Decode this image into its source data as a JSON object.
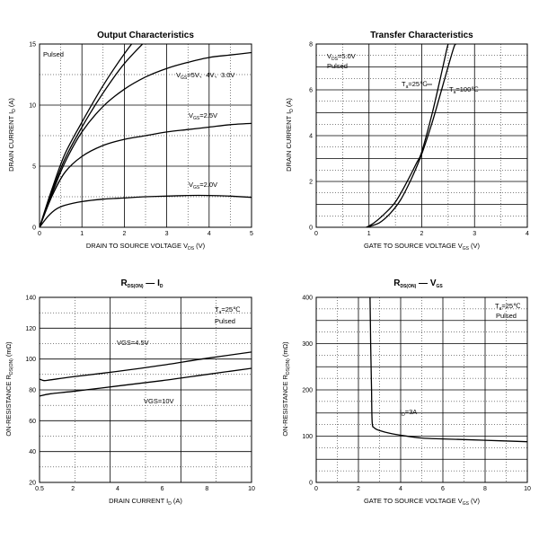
{
  "chart_data": [
    {
      "type": "line",
      "title": "Output Characteristics",
      "xlabel": "DRAIN TO SOURCE VOLTAGE",
      "xlabel_sym": "V",
      "xlabel_sub": "DS",
      "xlabel_unit": "(V)",
      "ylabel": "DRAIN CURRENT",
      "ylabel_sym": "I",
      "ylabel_sub": "D",
      "ylabel_unit": "(A)",
      "xlim": [
        0,
        5
      ],
      "ylim": [
        0,
        15
      ],
      "xticks": [
        0,
        1,
        2,
        3,
        4,
        5
      ],
      "yticks": [
        0,
        5,
        10,
        15
      ],
      "annotations": [
        "Pulsed"
      ],
      "series": [
        {
          "name": "VGS=5V",
          "label": "",
          "x": [
            0,
            0.3,
            0.6,
            1,
            1.5,
            2,
            2.4
          ],
          "y": [
            0,
            3.2,
            6,
            8.6,
            11.6,
            14.2,
            16
          ]
        },
        {
          "name": "VGS=4V",
          "label": "",
          "x": [
            0,
            0.3,
            0.6,
            1,
            1.5,
            2,
            2.6
          ],
          "y": [
            0,
            3,
            5.6,
            8.2,
            11,
            13.4,
            15.6
          ]
        },
        {
          "name": "VGS=3.0V",
          "label_sym": "V",
          "label_sub": "GS",
          "label": "=5V、4V、3.0V",
          "x": [
            0,
            0.3,
            0.6,
            1,
            1.5,
            2,
            2.5,
            3,
            3.5,
            4,
            4.5,
            5
          ],
          "y": [
            0,
            2.8,
            5.3,
            7.8,
            9.9,
            11.3,
            12.3,
            13,
            13.5,
            13.9,
            14.1,
            14.3
          ]
        },
        {
          "name": "VGS=2.5V",
          "label_sym": "V",
          "label_sub": "GS",
          "label": "=2.5V",
          "x": [
            0,
            0.3,
            0.6,
            1,
            1.5,
            2,
            2.5,
            3,
            3.5,
            4,
            4.5,
            5
          ],
          "y": [
            0,
            2.6,
            4.5,
            5.8,
            6.7,
            7.2,
            7.5,
            7.8,
            8,
            8.2,
            8.4,
            8.5
          ]
        },
        {
          "name": "VGS=2.0V",
          "label_sym": "V",
          "label_sub": "GS",
          "label": "=2.0V",
          "x": [
            0,
            0.2,
            0.4,
            0.6,
            1,
            1.5,
            2,
            2.5,
            3,
            3.5,
            4,
            4.5,
            5
          ],
          "y": [
            0,
            0.9,
            1.5,
            1.8,
            2.1,
            2.3,
            2.4,
            2.5,
            2.55,
            2.6,
            2.6,
            2.55,
            2.45
          ]
        }
      ]
    },
    {
      "type": "line",
      "title": "Transfer Characteristics",
      "xlabel": "GATE TO SOURCE VOLTAGE",
      "xlabel_sym": "V",
      "xlabel_sub": "GS",
      "xlabel_unit": "(V)",
      "ylabel": "DRAIN CURRENT",
      "ylabel_sym": "I",
      "ylabel_sub": "D",
      "ylabel_unit": "(A)",
      "xlim": [
        0,
        4
      ],
      "ylim": [
        0,
        8
      ],
      "xticks": [
        0,
        1,
        2,
        3,
        4
      ],
      "yticks": [
        0,
        2,
        4,
        6,
        8
      ],
      "annotations_sym": "V",
      "annotations_sub": "DS",
      "annotations_val": "=5.0V",
      "annotations": [
        "Pulsed"
      ],
      "series": [
        {
          "name": "Ta=25C",
          "label_sym": "T",
          "label_sub": "a",
          "label": "=25℃",
          "x": [
            0.95,
            1.2,
            1.4,
            1.6,
            1.8,
            2.0,
            2.2,
            2.4,
            2.6,
            2.65
          ],
          "y": [
            0,
            0.2,
            0.6,
            1.2,
            2.1,
            3.2,
            4.6,
            6.2,
            7.8,
            8.0
          ]
        },
        {
          "name": "Ta=100C",
          "label_sym": "T",
          "label_sub": "a",
          "label": "=100℃",
          "x": [
            0.95,
            1.1,
            1.3,
            1.5,
            1.7,
            1.9,
            2.0,
            2.2,
            2.4,
            2.5,
            2.55
          ],
          "y": [
            0,
            0.2,
            0.6,
            1.1,
            1.9,
            2.8,
            3.3,
            5.0,
            7.0,
            8.0,
            8.0
          ]
        }
      ]
    },
    {
      "type": "line",
      "title_sym1": "R",
      "title_sub1": "DS(ON)",
      "title_sep": "—",
      "title_sym2": "I",
      "title_sub2": "D",
      "xlabel": "DRAIN CURRENT",
      "xlabel_sym": "I",
      "xlabel_sub": "D",
      "xlabel_unit": "(A)",
      "ylabel": "ON-RESISTANCE",
      "ylabel_sym": "R",
      "ylabel_sub": "DS(ON)",
      "ylabel_unit": "(mΩ)",
      "xlim": [
        0.5,
        10
      ],
      "ylim": [
        20,
        140
      ],
      "xticks": [
        0.5,
        2,
        4,
        6,
        8,
        10
      ],
      "xticklabels": [
        "0.5",
        "2",
        "4",
        "6",
        "8",
        "10"
      ],
      "yticks": [
        20,
        40,
        60,
        80,
        100,
        120,
        140
      ],
      "annotations_sym": "T",
      "annotations_sub": "a",
      "annotations_val": "=25℃",
      "annotations": [
        "Pulsed"
      ],
      "series": [
        {
          "name": "VGS=4.5V",
          "label": "VGS=4.5V",
          "x": [
            0.5,
            0.7,
            1,
            2,
            4,
            6,
            8,
            10
          ],
          "y": [
            87,
            86,
            86.5,
            88.5,
            92,
            96,
            100.5,
            104.5
          ]
        },
        {
          "name": "VGS=10V",
          "label": "VGS=10V",
          "x": [
            0.5,
            1,
            2,
            4,
            6,
            8,
            10
          ],
          "y": [
            76,
            77.5,
            79,
            82.5,
            86,
            90,
            94
          ]
        }
      ]
    },
    {
      "type": "line",
      "title_sym1": "R",
      "title_sub1": "DS(ON)",
      "title_sep": "—",
      "title_sym2": "V",
      "title_sub2": "GS",
      "xlabel": "GATE TO SOURCE VOLTAGE",
      "xlabel_sym": "V",
      "xlabel_sub": "GS",
      "xlabel_unit": "(V)",
      "ylabel": "ON-RESISTANCE",
      "ylabel_sym": "R",
      "ylabel_sub": "DS(ON)",
      "ylabel_unit": "(mΩ)",
      "xlim": [
        0,
        10
      ],
      "ylim": [
        0,
        400
      ],
      "xticks": [
        0,
        2,
        4,
        6,
        8,
        10
      ],
      "yticks": [
        0,
        100,
        200,
        300,
        400
      ],
      "annotations_sym": "T",
      "annotations_sub": "a",
      "annotations_val": "=25℃",
      "annotations": [
        "Pulsed"
      ],
      "series": [
        {
          "name": "ID=3A",
          "label_sym": "I",
          "label_sub": "D",
          "label": "=3A",
          "x": [
            2.55,
            2.58,
            2.62,
            2.65,
            2.75,
            3.0,
            3.5,
            4.0,
            5,
            6,
            8,
            10
          ],
          "y": [
            400,
            300,
            200,
            130,
            118,
            112,
            106,
            102,
            96,
            94,
            91,
            88
          ]
        }
      ]
    }
  ]
}
